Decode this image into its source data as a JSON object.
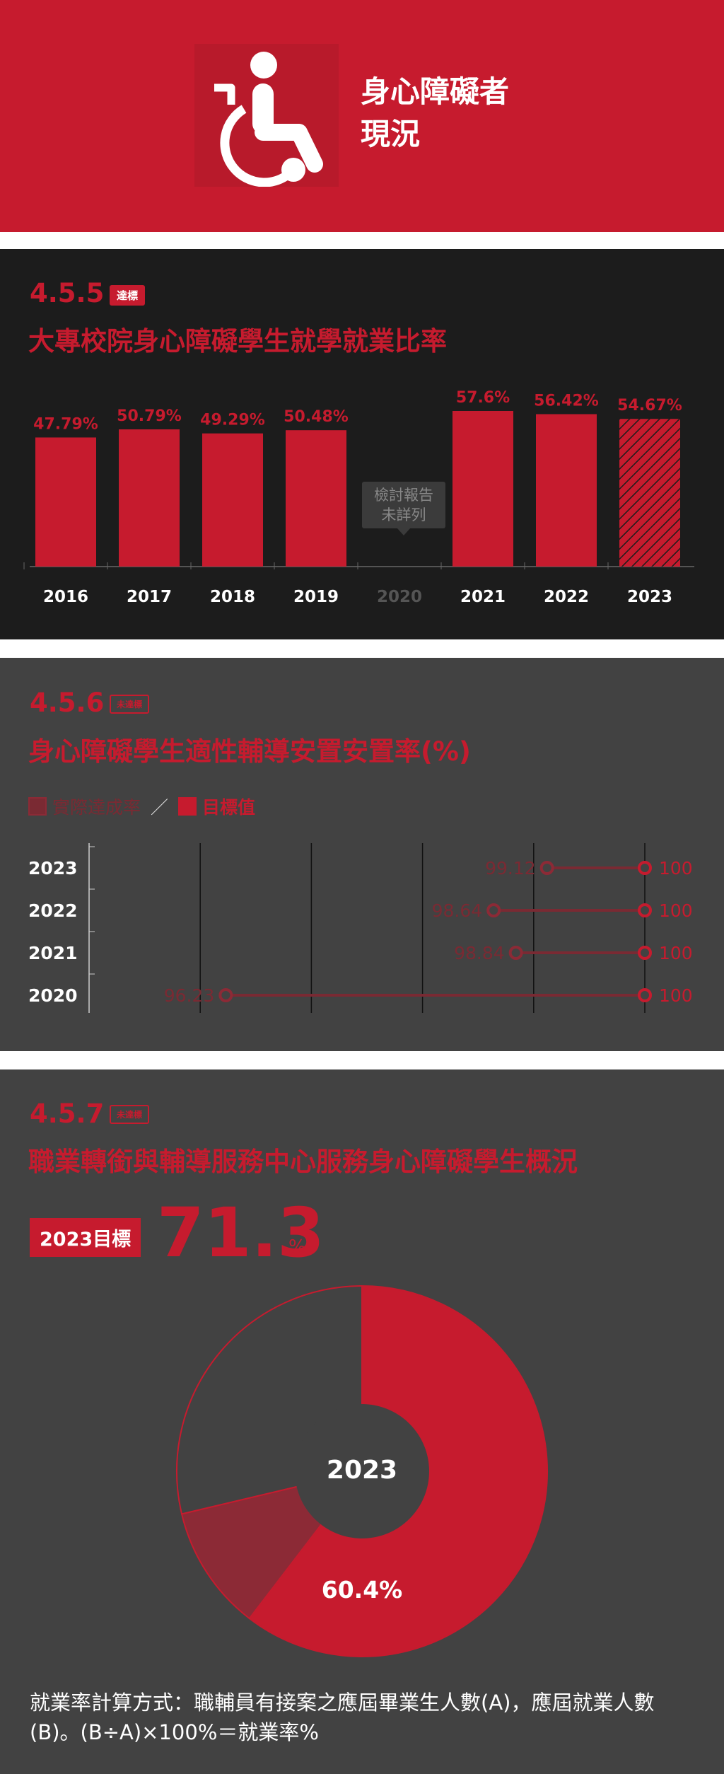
{
  "header": {
    "title_line1": "身心障礙者",
    "title_line2": "現況",
    "icon": "wheelchair-icon"
  },
  "colors": {
    "brand": "#c61b2e",
    "dark_bg": "#1c1c1c",
    "gray_bg": "#424242",
    "muted_red": "#7a2a33"
  },
  "sections": [
    {
      "number": "4.5.5",
      "badge": "達標",
      "title": "大專校院身心障礙學生就學就業比率",
      "note": [
        "檢討報告",
        "未詳列"
      ]
    },
    {
      "number": "4.5.6",
      "badge": "未達標",
      "title": "身心障礙學生適性輔導安置安置率(%)",
      "legend": [
        {
          "label": "實際達成率"
        },
        {
          "label": "目標值"
        }
      ],
      "legend_sep": "／"
    },
    {
      "number": "4.5.7",
      "badge": "未達標",
      "title": "職業轉銜與輔導服務中心服務身心障礙學生概況",
      "target_tag": "2023目標",
      "target_value": "71.3",
      "target_unit": "%",
      "formula": [
        "就業率計算方式：職輔員有接案之應屆畢業生人數(A)，應屆就業人數",
        "(B)。(B÷A)×100%＝就業率%"
      ]
    }
  ],
  "chart_data": [
    {
      "type": "bar",
      "categories": [
        "2016",
        "2017",
        "2018",
        "2019",
        "2020",
        "2021",
        "2022",
        "2023"
      ],
      "values": [
        47.79,
        50.79,
        49.29,
        50.48,
        null,
        57.6,
        56.42,
        54.67
      ],
      "labels": [
        "47.79%",
        "50.79%",
        "49.29%",
        "50.48%",
        "",
        "57.6%",
        "56.42%",
        "54.67%"
      ],
      "unit": "%",
      "ylim": [
        0,
        60
      ],
      "hatched_last": true
    },
    {
      "type": "scatter",
      "categories": [
        "2023",
        "2022",
        "2021",
        "2020"
      ],
      "series": [
        {
          "name": "實際達成率",
          "values": [
            99.12,
            98.64,
            98.84,
            96.23
          ]
        },
        {
          "name": "目標值",
          "values": [
            100,
            100,
            100,
            100
          ]
        }
      ],
      "value_labels": [
        "99.12",
        "98.64",
        "98.84",
        "96.23"
      ],
      "target_labels": [
        "100",
        "100",
        "100",
        "100"
      ],
      "xlim": [
        95,
        100
      ]
    },
    {
      "type": "pie",
      "center_label": "2023",
      "slices": [
        {
          "value": 60.4,
          "label": "60.4%",
          "color": "#c61b2e"
        },
        {
          "value": 10.9,
          "label": "",
          "color": "#8c2a36"
        },
        {
          "value": 28.7,
          "label": "",
          "color": "#424242"
        }
      ]
    }
  ]
}
